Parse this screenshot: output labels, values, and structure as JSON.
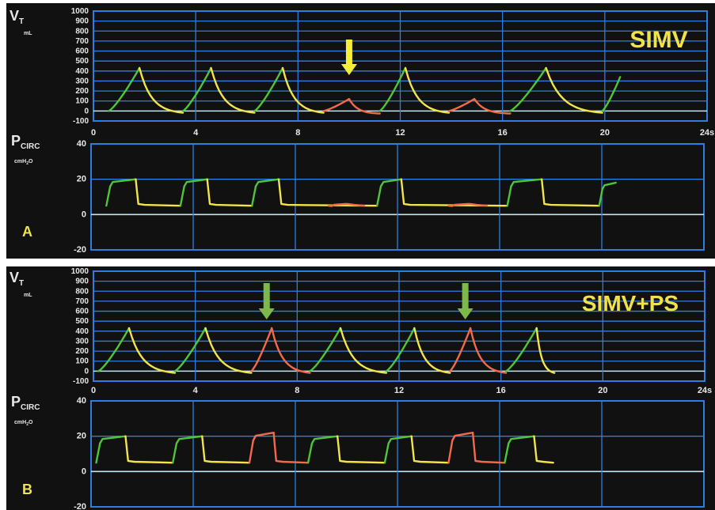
{
  "panels": [
    {
      "letter": "A",
      "mode_label": "SIMV",
      "vt_label": {
        "main": "V",
        "sub": "T",
        "unit": "mL"
      },
      "p_label": {
        "main": "P",
        "sub": "CIRC",
        "unit": "cmH",
        "unit_sub": "2",
        "unit_tail": "O"
      },
      "arrow_colors": [
        "#f5ee3a"
      ],
      "arrow_times_s": [
        10
      ]
    },
    {
      "letter": "B",
      "mode_label": "SIMV+PS",
      "vt_label": {
        "main": "V",
        "sub": "T",
        "unit": "mL"
      },
      "p_label": {
        "main": "P",
        "sub": "CIRC",
        "unit": "cmH",
        "unit_sub": "2",
        "unit_tail": "O"
      },
      "arrow_colors": [
        "#7db84a",
        "#7db84a"
      ],
      "arrow_times_s": [
        6.8,
        14.6
      ]
    }
  ],
  "colors": {
    "background": "#111111",
    "grid": "#2f7de0",
    "baseline": "#bfe6f2",
    "label": "#f0e24a",
    "axis_text": "#e8e8e8",
    "inspiration_mandatory": "#4fc63a",
    "expiration": "#f2e44a",
    "spontaneous_breath": "#f26a4a"
  },
  "chart_data": [
    {
      "type": "line",
      "panel": "A",
      "title": "SIMV",
      "ylabel": "VT mL",
      "xlabel": "",
      "xlim": [
        0,
        24
      ],
      "ylim": [
        -100,
        1000
      ],
      "x_ticks": [
        "0",
        "4",
        "8",
        "12",
        "16",
        "20",
        "24s"
      ],
      "y_ticks": [
        "1000",
        "900",
        "800",
        "700",
        "600",
        "500",
        "400",
        "300",
        "200",
        "100",
        "0",
        "-100"
      ],
      "breaths": [
        {
          "start_s": 0.6,
          "insp_end_s": 1.8,
          "exp_end_s": 3.5,
          "peak": 430,
          "kind": "mandatory"
        },
        {
          "start_s": 3.5,
          "insp_end_s": 4.6,
          "exp_end_s": 6.3,
          "peak": 430,
          "kind": "mandatory"
        },
        {
          "start_s": 6.3,
          "insp_end_s": 7.4,
          "exp_end_s": 9.0,
          "peak": 430,
          "kind": "mandatory"
        },
        {
          "start_s": 9.0,
          "insp_end_s": 10.0,
          "exp_end_s": 11.2,
          "peak": 120,
          "kind": "spontaneous"
        },
        {
          "start_s": 11.2,
          "insp_end_s": 12.2,
          "exp_end_s": 13.9,
          "peak": 430,
          "kind": "mandatory"
        },
        {
          "start_s": 13.9,
          "insp_end_s": 14.9,
          "exp_end_s": 16.3,
          "peak": 120,
          "kind": "spontaneous"
        },
        {
          "start_s": 16.3,
          "insp_end_s": 17.7,
          "exp_end_s": 19.9,
          "peak": 430,
          "kind": "mandatory"
        },
        {
          "start_s": 19.9,
          "insp_end_s": 20.6,
          "exp_end_s": 20.6,
          "peak": 340,
          "kind": "mandatory"
        }
      ]
    },
    {
      "type": "line",
      "panel": "A",
      "title": "",
      "ylabel": "PCIRC cmH2O",
      "xlabel": "",
      "xlim": [
        0,
        24
      ],
      "ylim": [
        -20,
        40
      ],
      "y_ticks": [
        "40",
        "20",
        "0",
        "-20"
      ],
      "peep": 5,
      "breaths": [
        {
          "start_s": 0.6,
          "insp_end_s": 1.8,
          "exp_end_s": 3.5,
          "peak": 20,
          "kind": "mandatory"
        },
        {
          "start_s": 3.5,
          "insp_end_s": 4.6,
          "exp_end_s": 6.3,
          "peak": 20,
          "kind": "mandatory"
        },
        {
          "start_s": 6.3,
          "insp_end_s": 7.4,
          "exp_end_s": 11.2,
          "peak": 20,
          "kind": "mandatory"
        },
        {
          "start_s": 9.3,
          "insp_end_s": 10.0,
          "exp_end_s": 10.7,
          "peak": 6,
          "kind": "spontaneous"
        },
        {
          "start_s": 11.2,
          "insp_end_s": 12.2,
          "exp_end_s": 16.3,
          "peak": 20,
          "kind": "mandatory"
        },
        {
          "start_s": 14.0,
          "insp_end_s": 14.8,
          "exp_end_s": 15.5,
          "peak": 6,
          "kind": "spontaneous"
        },
        {
          "start_s": 16.3,
          "insp_end_s": 17.7,
          "exp_end_s": 19.9,
          "peak": 20,
          "kind": "mandatory"
        },
        {
          "start_s": 19.9,
          "insp_end_s": 20.6,
          "exp_end_s": 20.6,
          "peak": 18,
          "kind": "mandatory"
        }
      ]
    },
    {
      "type": "line",
      "panel": "B",
      "title": "SIMV+PS",
      "ylabel": "VT mL",
      "xlabel": "",
      "xlim": [
        0,
        24
      ],
      "ylim": [
        -100,
        1000
      ],
      "x_ticks": [
        "0",
        "4",
        "8",
        "12",
        "16",
        "20",
        "24s"
      ],
      "y_ticks": [
        "1000",
        "900",
        "800",
        "700",
        "600",
        "500",
        "400",
        "300",
        "200",
        "100",
        "0",
        "-100"
      ],
      "breaths": [
        {
          "start_s": 0.2,
          "insp_end_s": 1.4,
          "exp_end_s": 3.2,
          "peak": 430,
          "kind": "mandatory"
        },
        {
          "start_s": 3.2,
          "insp_end_s": 4.4,
          "exp_end_s": 6.2,
          "peak": 430,
          "kind": "mandatory"
        },
        {
          "start_s": 6.2,
          "insp_end_s": 7.0,
          "exp_end_s": 8.5,
          "peak": 430,
          "kind": "spontaneous"
        },
        {
          "start_s": 8.5,
          "insp_end_s": 9.7,
          "exp_end_s": 11.5,
          "peak": 430,
          "kind": "mandatory"
        },
        {
          "start_s": 11.5,
          "insp_end_s": 12.6,
          "exp_end_s": 14.0,
          "peak": 430,
          "kind": "mandatory"
        },
        {
          "start_s": 14.0,
          "insp_end_s": 14.8,
          "exp_end_s": 16.2,
          "peak": 430,
          "kind": "spontaneous"
        },
        {
          "start_s": 16.2,
          "insp_end_s": 17.4,
          "exp_end_s": 18.1,
          "peak": 430,
          "kind": "mandatory"
        }
      ]
    },
    {
      "type": "line",
      "panel": "B",
      "title": "",
      "ylabel": "PCIRC cmH2O",
      "xlabel": "",
      "xlim": [
        0,
        24
      ],
      "ylim": [
        -20,
        40
      ],
      "y_ticks": [
        "40",
        "20",
        "0",
        "-20"
      ],
      "peep": 5,
      "breaths": [
        {
          "start_s": 0.2,
          "insp_end_s": 1.4,
          "exp_end_s": 3.2,
          "peak": 20,
          "kind": "mandatory"
        },
        {
          "start_s": 3.2,
          "insp_end_s": 4.4,
          "exp_end_s": 6.2,
          "peak": 20,
          "kind": "mandatory"
        },
        {
          "start_s": 6.2,
          "insp_end_s": 7.2,
          "exp_end_s": 8.5,
          "peak": 22,
          "kind": "spontaneous"
        },
        {
          "start_s": 8.5,
          "insp_end_s": 9.7,
          "exp_end_s": 11.5,
          "peak": 20,
          "kind": "mandatory"
        },
        {
          "start_s": 11.5,
          "insp_end_s": 12.6,
          "exp_end_s": 14.0,
          "peak": 20,
          "kind": "mandatory"
        },
        {
          "start_s": 14.0,
          "insp_end_s": 15.0,
          "exp_end_s": 16.2,
          "peak": 22,
          "kind": "spontaneous"
        },
        {
          "start_s": 16.2,
          "insp_end_s": 17.4,
          "exp_end_s": 18.1,
          "peak": 20,
          "kind": "mandatory"
        }
      ]
    }
  ]
}
